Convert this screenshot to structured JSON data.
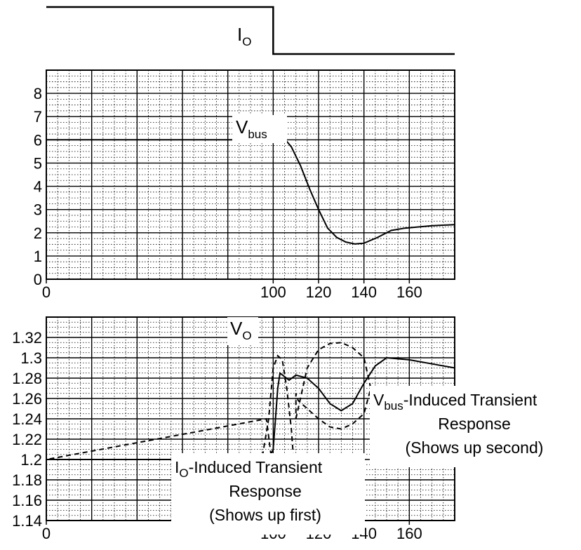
{
  "chart_data": [
    {
      "type": "line",
      "panel": "load-step",
      "label": {
        "main": "I",
        "sub": "O"
      },
      "x": [
        0,
        100,
        180
      ],
      "level": [
        1,
        0,
        0
      ],
      "note": "load current steps down at x = 100"
    },
    {
      "type": "line",
      "panel": "bus-voltage",
      "label": {
        "main": "V",
        "sub": "bus"
      },
      "xlim": [
        0,
        180
      ],
      "ylim": [
        0,
        9
      ],
      "xticks": [
        "0",
        "100",
        "120",
        "140",
        "160"
      ],
      "yticks": [
        "0",
        "1",
        "2",
        "3",
        "4",
        "5",
        "6",
        "7",
        "8"
      ],
      "grid": true,
      "series": [
        {
          "line_style": "solid",
          "x": [
            0,
            95,
            99,
            101,
            103,
            105,
            108,
            112,
            116,
            120,
            124,
            128,
            132,
            136,
            140,
            146,
            152,
            158,
            164,
            170,
            180
          ],
          "y": [
            6.0,
            6.0,
            5.95,
            5.97,
            6.05,
            6.05,
            5.7,
            4.9,
            3.9,
            3.0,
            2.2,
            1.8,
            1.6,
            1.52,
            1.55,
            1.8,
            2.1,
            2.2,
            2.25,
            2.3,
            2.35
          ]
        }
      ]
    },
    {
      "type": "line",
      "panel": "output-voltage",
      "label": {
        "main": "V",
        "sub": "O"
      },
      "xlim": [
        0,
        180
      ],
      "ylim": [
        1.14,
        1.34
      ],
      "xticks": [
        "0",
        "100",
        "120",
        "140",
        "160"
      ],
      "yticks": [
        "1.14",
        "1.16",
        "1.18",
        "1.2",
        "1.22",
        "1.24",
        "1.26",
        "1.28",
        "1.3",
        "1.32"
      ],
      "grid": true,
      "series": [
        {
          "line_style": "solid",
          "x": [
            0,
            98,
            100,
            101,
            102,
            103,
            107,
            110,
            115,
            120,
            125,
            130,
            135,
            140,
            145,
            150,
            160,
            170,
            180
          ],
          "y": [
            1.2,
            1.2,
            1.21,
            1.24,
            1.27,
            1.285,
            1.278,
            1.283,
            1.28,
            1.27,
            1.255,
            1.248,
            1.255,
            1.275,
            1.292,
            1.3,
            1.298,
            1.294,
            1.29
          ]
        },
        {
          "line_style": "dashed",
          "x": [
            0,
            95,
            98,
            100,
            102,
            104,
            106,
            108,
            109,
            107,
            105,
            103,
            101,
            99,
            97
          ],
          "y": [
            1.2,
            1.2,
            1.24,
            1.29,
            1.302,
            1.298,
            1.27,
            1.23,
            1.2,
            1.188,
            1.185,
            1.186,
            1.19,
            1.205,
            1.24
          ]
        },
        {
          "line_style": "dashed",
          "x": [
            110,
            115,
            120,
            125,
            130,
            135,
            140,
            143,
            140,
            135,
            130,
            125,
            120,
            115,
            111,
            110
          ],
          "y": [
            1.24,
            1.29,
            1.308,
            1.314,
            1.315,
            1.31,
            1.3,
            1.27,
            1.245,
            1.235,
            1.23,
            1.232,
            1.24,
            1.25,
            1.258,
            1.265
          ]
        }
      ],
      "annotations": [
        {
          "text_main": "V",
          "text_sub": "bus",
          "text_rest": "-Induced Transient",
          "line2": "Response",
          "line3": "(Shows up second)",
          "target": [
            144,
            1.265
          ]
        },
        {
          "text_main": "I",
          "text_sub": "O",
          "text_rest": "-Induced Transient",
          "line2": "Response",
          "line3": "(Shows up first)",
          "target": [
            106,
            1.185
          ]
        }
      ]
    }
  ]
}
